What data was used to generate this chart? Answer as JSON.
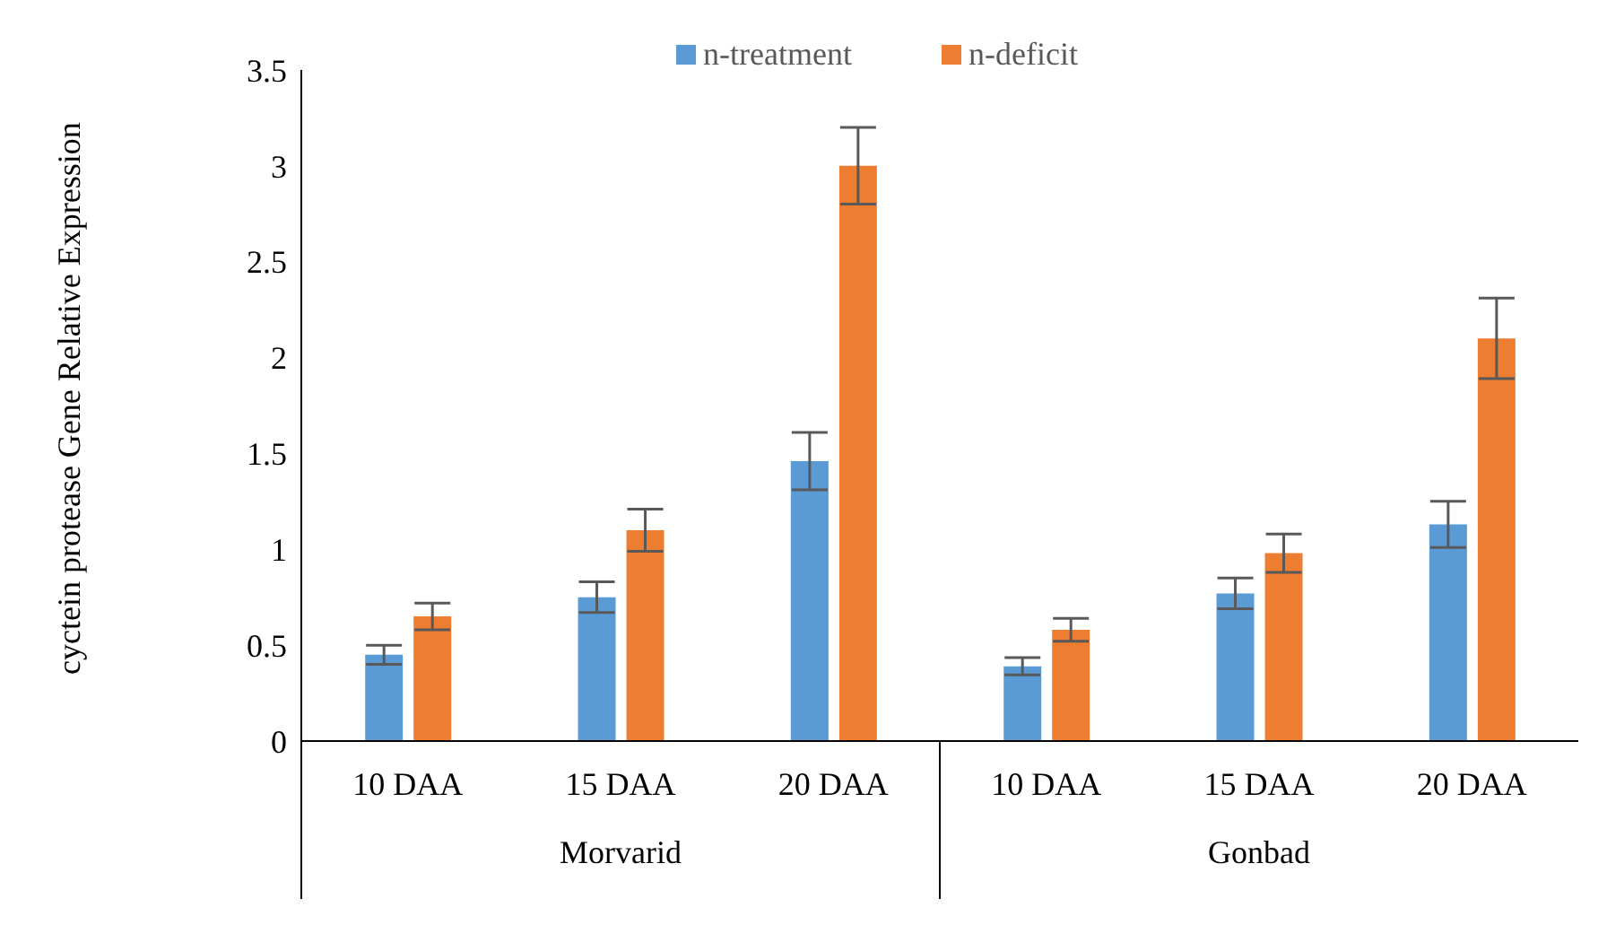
{
  "chart_data": {
    "type": "bar",
    "ylabel": "cyctein protease Gene Relative Expression",
    "categories": [
      "10 DAA",
      "15 DAA",
      "20 DAA",
      "10 DAA",
      "15 DAA",
      "20 DAA"
    ],
    "series": [
      {
        "name": "n-treatment",
        "color": "#5b9bd5",
        "values": [
          0.45,
          0.75,
          1.46,
          0.39,
          0.77,
          1.13
        ],
        "errors": [
          0.05,
          0.08,
          0.15,
          0.045,
          0.08,
          0.12
        ]
      },
      {
        "name": "n-deficit",
        "color": "#ed7d31",
        "values": [
          0.65,
          1.1,
          3.0,
          0.58,
          0.98,
          2.1
        ],
        "errors": [
          0.07,
          0.11,
          0.2,
          0.06,
          0.1,
          0.21
        ]
      }
    ],
    "annotations": [
      "Morvarid",
      "Gonbad"
    ],
    "ylim": [
      0,
      3.5
    ],
    "yticks": [
      0,
      0.5,
      1,
      1.5,
      2,
      2.5,
      3,
      3.5
    ],
    "grid": false,
    "legend": "top"
  }
}
